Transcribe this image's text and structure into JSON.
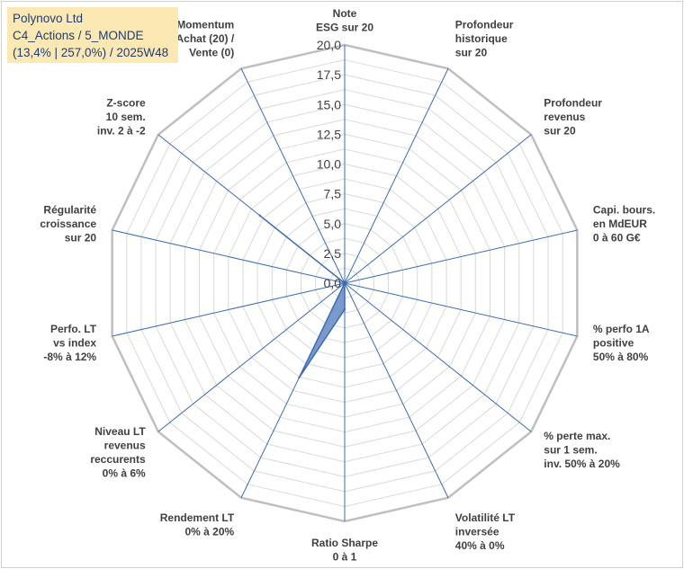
{
  "info": {
    "line1": "Polynovo Ltd",
    "line2": "C4_Actions / 5_MONDE",
    "line3": "(13,4% | 257,0%) / 2025W48"
  },
  "colors": {
    "fill": "#6b8fc7",
    "stroke": "#3c6bb8",
    "spoke": "#3c6bb8",
    "outer_ring": "#bfbfbf",
    "inner_ring": "#d9d9d9",
    "info_bg": "#fbe8b3",
    "info_text": "#1f3d73"
  },
  "chart_data": {
    "type": "radar",
    "title": "",
    "rmin": 0,
    "rmax": 20,
    "ring_step": 1.25,
    "tick_values": [
      0,
      2.5,
      5,
      7.5,
      10,
      12.5,
      15,
      17.5,
      20
    ],
    "tick_labels": [
      "0,0",
      "2,5",
      "5,0",
      "7,5",
      "10,0",
      "12,5",
      "15,0",
      "17,5",
      "20,0"
    ],
    "axes": [
      {
        "lines": [
          "Note",
          "ESG sur 20"
        ]
      },
      {
        "lines": [
          "Profondeur",
          "historique",
          "sur 20"
        ]
      },
      {
        "lines": [
          "Profondeur",
          "revenus",
          "sur 20"
        ]
      },
      {
        "lines": [
          "Capi. bours.",
          "en MdEUR",
          "0 à 60 G€"
        ]
      },
      {
        "lines": [
          "% perfo 1A",
          "positive",
          "50% à 80%"
        ]
      },
      {
        "lines": [
          "% perte max.",
          "sur 1 sem.",
          "inv. 50% à 20%"
        ]
      },
      {
        "lines": [
          "Volatilité LT",
          "inversée",
          "40% à 0%"
        ]
      },
      {
        "lines": [
          "Ratio Sharpe",
          "0 à 1"
        ]
      },
      {
        "lines": [
          "Rendement LT",
          "0% à 20%"
        ]
      },
      {
        "lines": [
          "Niveau LT",
          "revenus",
          "reccurents",
          "0% à 6%"
        ]
      },
      {
        "lines": [
          "Perfo. LT",
          "vs index",
          "-8% à 12%"
        ]
      },
      {
        "lines": [
          "Régularité",
          "croissance",
          "sur 20"
        ]
      },
      {
        "lines": [
          "Z-score",
          "10 sem.",
          "inv. 2 à -2"
        ]
      },
      {
        "lines": [
          "Momentum",
          "Achat (20) /",
          "Vente (0)"
        ]
      }
    ],
    "series": [
      {
        "name": "Polynovo Ltd",
        "values": [
          0,
          0,
          0,
          0,
          0,
          0,
          0,
          2.2,
          8.8,
          0,
          0,
          0,
          9.1,
          0
        ]
      }
    ]
  }
}
